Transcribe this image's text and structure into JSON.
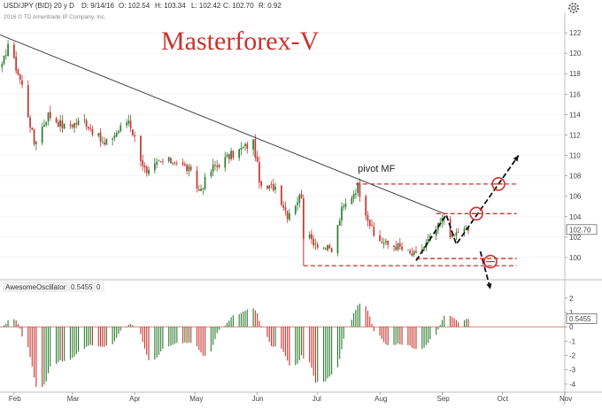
{
  "header": {
    "symbol": "USD/JPY (BID) 20 y D",
    "date": "D: 9/14/16",
    "open": "O: 102.54",
    "high": "H: 103.34",
    "low": "L: 102.42",
    "close": "C: 102.70",
    "range": "R: 0.92",
    "copyright": "2016 © TD Ameritrade IP Company, Inc."
  },
  "watermark": "Masterforex-V",
  "settings_icon": "gear-icon",
  "oscillator_panel": {
    "name": "AwesomeOscillator",
    "value": "0.5455",
    "second_value": "0",
    "last_value_tag": "0.5455"
  },
  "chart_data": [
    {
      "type": "candlestick",
      "title": "",
      "x_type": "date",
      "x_range": [
        "2016-01-25",
        "2016-11-01"
      ],
      "x_tick_labels": [
        "Feb",
        "Mar",
        "Apr",
        "May",
        "Jun",
        "Jul",
        "Aug",
        "Sep",
        "Oct",
        "Nov"
      ],
      "y_ticks": [
        100,
        102,
        104,
        106,
        108,
        110,
        112,
        114,
        116,
        118,
        120,
        122
      ],
      "y_tick_labels": [
        "100",
        "102",
        "104",
        "106",
        "108",
        "110",
        "112",
        "114",
        "116",
        "118",
        "120",
        "122"
      ],
      "ylim": [
        98,
        124
      ],
      "last_price_label": "102.70",
      "last_price": 102.7,
      "anchors": [
        [
          "2016-01-26",
          118.6
        ],
        [
          "2016-01-29",
          121.0
        ],
        [
          "2016-02-05",
          116.8
        ],
        [
          "2016-02-11",
          111.2
        ],
        [
          "2016-02-18",
          114.0
        ],
        [
          "2016-02-26",
          112.8
        ],
        [
          "2016-03-07",
          113.4
        ],
        [
          "2016-03-17",
          111.0
        ],
        [
          "2016-03-29",
          113.5
        ],
        [
          "2016-04-07",
          108.0
        ],
        [
          "2016-04-13",
          109.3
        ],
        [
          "2016-04-21",
          109.5
        ],
        [
          "2016-04-28",
          108.6
        ],
        [
          "2016-05-03",
          106.5
        ],
        [
          "2016-05-10",
          108.8
        ],
        [
          "2016-05-18",
          109.9
        ],
        [
          "2016-05-30",
          111.3
        ],
        [
          "2016-06-03",
          106.6
        ],
        [
          "2016-06-10",
          107.0
        ],
        [
          "2016-06-16",
          104.2
        ],
        [
          "2016-06-23",
          106.2
        ],
        [
          "2016-06-24",
          102.2
        ],
        [
          "2016-07-06",
          100.8
        ],
        [
          "2016-07-08",
          100.6
        ],
        [
          "2016-07-13",
          104.6
        ],
        [
          "2016-07-21",
          107.0
        ],
        [
          "2016-07-29",
          102.1
        ],
        [
          "2016-08-04",
          101.3
        ],
        [
          "2016-08-10",
          101.1
        ],
        [
          "2016-08-16",
          100.3
        ],
        [
          "2016-08-19",
          100.2
        ],
        [
          "2016-08-26",
          101.8
        ],
        [
          "2016-09-02",
          103.9
        ],
        [
          "2016-09-06",
          101.9
        ],
        [
          "2016-09-09",
          102.6
        ],
        [
          "2016-09-14",
          102.7
        ]
      ],
      "trendlines": [
        {
          "from": [
            "2016-01-25",
            121.8
          ],
          "to": [
            "2016-09-02",
            104.3
          ],
          "color": "#333333",
          "style": "solid"
        }
      ],
      "levels": [
        {
          "from": "2016-07-20",
          "to": "2016-10-08",
          "y": 107.2,
          "color": "#c8332e",
          "style": "dashed"
        },
        {
          "from": "2016-08-29",
          "to": "2016-10-08",
          "y": 104.3,
          "color": "#c8332e",
          "style": "dashed"
        },
        {
          "from": "2016-08-19",
          "to": "2016-10-08",
          "y": 99.9,
          "color": "#c8332e",
          "style": "dashed"
        },
        {
          "from": "2016-06-24",
          "to": "2016-10-08",
          "y": 99.2,
          "color": "#c8332e",
          "style": "dashed"
        }
      ],
      "support_marker": {
        "x": "2016-06-24",
        "y_top": 102.3,
        "y_bottom": 99.2
      },
      "arrows": [
        {
          "points": [
            [
              "2016-08-19",
              99.7
            ],
            [
              "2016-09-03",
              104.2
            ],
            [
              "2016-09-08",
              101.3
            ],
            [
              "2016-10-09",
              110.0
            ]
          ],
          "style": "dashed",
          "color": "#111111"
        },
        {
          "points": [
            [
              "2016-09-20",
              100.6
            ],
            [
              "2016-09-25",
              96.9
            ]
          ],
          "style": "dashed",
          "color": "#111111"
        }
      ],
      "circles": [
        {
          "x": "2016-09-29",
          "y": 107.2,
          "color": "#c8332e"
        },
        {
          "x": "2016-09-18",
          "y": 104.3,
          "color": "#c8332e"
        },
        {
          "x": "2016-09-25",
          "y": 99.6,
          "color": "#c8332e"
        }
      ],
      "annotations": [
        {
          "text": "pivot MF",
          "x": "2016-07-21",
          "y": 108.4
        }
      ]
    },
    {
      "type": "histogram",
      "title": "",
      "x_type": "date",
      "x_range": [
        "2016-01-25",
        "2016-11-01"
      ],
      "y_ticks": [
        -4,
        -3,
        -2,
        -1,
        0,
        1,
        2
      ],
      "y_tick_labels": [
        "-4",
        "-3",
        "-2",
        "-1",
        "0",
        "1",
        "2"
      ],
      "ylim": [
        -4.5,
        2.3
      ],
      "colors": {
        "up": "#2e7d32",
        "down": "#c8332e"
      },
      "last_value": 0.5455
    }
  ]
}
